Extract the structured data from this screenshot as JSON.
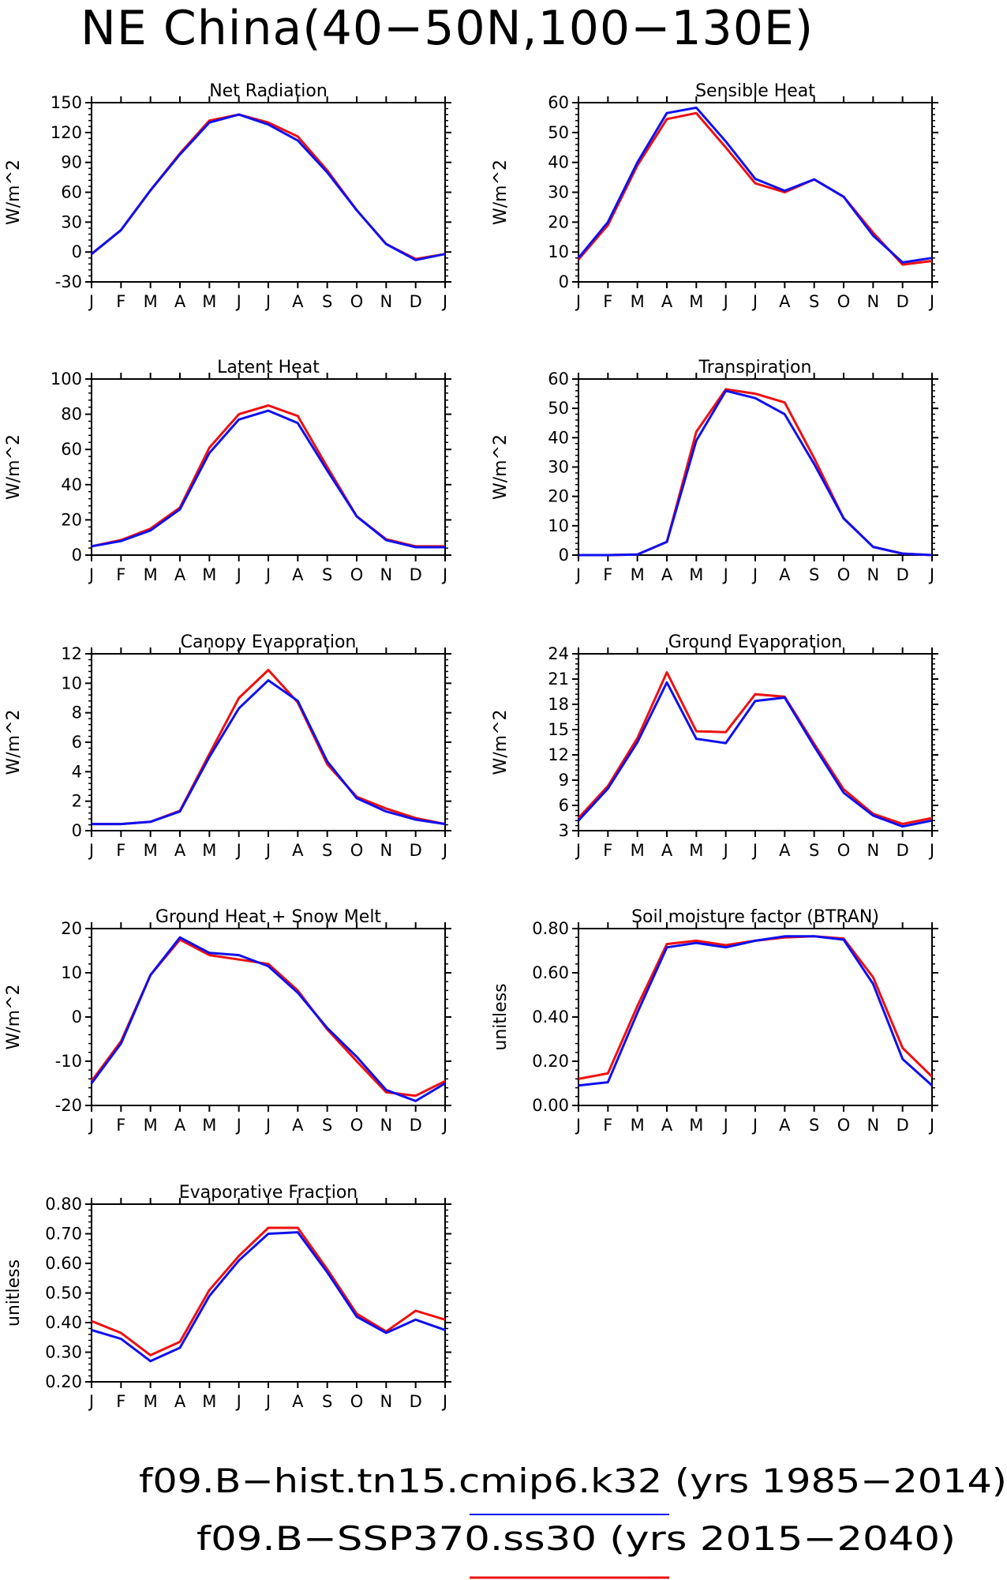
{
  "figure": {
    "title": "NE China(40−50N,100−130E)",
    "legend": [
      {
        "label": "f09.B−hist.tn15.cmip6.k32 (yrs 1985−2014)",
        "color": "#1010ee"
      },
      {
        "label": "f09.B−SSP370.ss30 (yrs 2015−2040)",
        "color": "#ee1010"
      }
    ],
    "series_colors": {
      "hist": "#1010ee",
      "ssp": "#ee1010"
    }
  },
  "chart_data": [
    {
      "type": "line",
      "title": "Net Radiation",
      "ylabel": "W/m^2",
      "x": [
        "J",
        "F",
        "M",
        "A",
        "M",
        "J",
        "J",
        "A",
        "S",
        "O",
        "N",
        "D",
        "J"
      ],
      "ylim": [
        -30,
        150
      ],
      "yticks": [
        "-30",
        "0",
        "30",
        "60",
        "90",
        "120",
        "150"
      ],
      "series": [
        {
          "key": "hist",
          "values": [
            -2,
            22,
            62,
            98,
            130,
            138,
            128,
            112,
            80,
            42,
            8,
            -8,
            -2
          ]
        },
        {
          "key": "ssp",
          "values": [
            -2,
            22,
            62,
            99,
            132,
            138,
            130,
            116,
            82,
            42,
            8,
            -7,
            -2
          ]
        }
      ]
    },
    {
      "type": "line",
      "title": "Sensible Heat",
      "ylabel": "W/m^2",
      "x": [
        "J",
        "F",
        "M",
        "A",
        "M",
        "J",
        "J",
        "A",
        "S",
        "O",
        "N",
        "D",
        "J"
      ],
      "ylim": [
        0,
        60
      ],
      "yticks": [
        "0",
        "10",
        "20",
        "30",
        "40",
        "50",
        "60"
      ],
      "series": [
        {
          "key": "hist",
          "values": [
            8,
            20,
            40,
            56.5,
            58.3,
            47,
            34.5,
            30.5,
            34.3,
            28.5,
            15.5,
            6.5,
            8
          ]
        },
        {
          "key": "ssp",
          "values": [
            7.5,
            19,
            39,
            54.5,
            56.5,
            45,
            33,
            30,
            34.3,
            28.5,
            16.5,
            5.8,
            7
          ]
        }
      ]
    },
    {
      "type": "line",
      "title": "Latent Heat",
      "ylabel": "W/m^2",
      "x": [
        "J",
        "F",
        "M",
        "A",
        "M",
        "J",
        "J",
        "A",
        "S",
        "O",
        "N",
        "D",
        "J"
      ],
      "ylim": [
        0,
        100
      ],
      "yticks": [
        "0",
        "20",
        "40",
        "60",
        "80",
        "100"
      ],
      "series": [
        {
          "key": "hist",
          "values": [
            5,
            8,
            14,
            26,
            58,
            77,
            82,
            75,
            48,
            22,
            8.5,
            4.5,
            4.5
          ]
        },
        {
          "key": "ssp",
          "values": [
            5,
            8.5,
            15,
            27,
            61,
            80,
            85,
            79,
            50,
            22,
            9,
            5,
            5
          ]
        }
      ]
    },
    {
      "type": "line",
      "title": "Transpiration",
      "ylabel": "W/m^2",
      "x": [
        "J",
        "F",
        "M",
        "A",
        "M",
        "J",
        "J",
        "A",
        "S",
        "O",
        "N",
        "D",
        "J"
      ],
      "ylim": [
        0,
        60
      ],
      "yticks": [
        "0",
        "10",
        "20",
        "30",
        "40",
        "50",
        "60"
      ],
      "series": [
        {
          "key": "hist",
          "values": [
            0,
            0,
            0.2,
            4.5,
            39,
            56,
            53.5,
            48,
            31,
            12.5,
            2.8,
            0.5,
            0
          ]
        },
        {
          "key": "ssp",
          "values": [
            0,
            0,
            0.2,
            4.5,
            42,
            56.5,
            55,
            52,
            33,
            12.5,
            2.8,
            0.5,
            0
          ]
        }
      ]
    },
    {
      "type": "line",
      "title": "Canopy Evaporation",
      "ylabel": "W/m^2",
      "x": [
        "J",
        "F",
        "M",
        "A",
        "M",
        "J",
        "J",
        "A",
        "S",
        "O",
        "N",
        "D",
        "J"
      ],
      "ylim": [
        0,
        12
      ],
      "yticks": [
        "0",
        "2",
        "4",
        "6",
        "8",
        "10",
        "12"
      ],
      "series": [
        {
          "key": "hist",
          "values": [
            0.45,
            0.45,
            0.6,
            1.3,
            5,
            8.3,
            10.2,
            8.8,
            4.7,
            2.2,
            1.3,
            0.75,
            0.45
          ]
        },
        {
          "key": "ssp",
          "values": [
            0.45,
            0.45,
            0.6,
            1.35,
            5.2,
            9,
            10.9,
            8.7,
            4.5,
            2.3,
            1.5,
            0.85,
            0.45
          ]
        }
      ]
    },
    {
      "type": "line",
      "title": "Ground Evaporation",
      "ylabel": "W/m^2",
      "x": [
        "J",
        "F",
        "M",
        "A",
        "M",
        "J",
        "J",
        "A",
        "S",
        "O",
        "N",
        "D",
        "J"
      ],
      "ylim": [
        3,
        24
      ],
      "yticks": [
        "3",
        "6",
        "9",
        "12",
        "15",
        "18",
        "21",
        "24"
      ],
      "series": [
        {
          "key": "hist",
          "values": [
            4.2,
            8,
            13.5,
            20.6,
            13.9,
            13.4,
            18.4,
            18.8,
            13,
            7.5,
            4.8,
            3.5,
            4.2
          ]
        },
        {
          "key": "ssp",
          "values": [
            4.5,
            8.3,
            14,
            21.8,
            14.8,
            14.7,
            19.2,
            18.9,
            13.3,
            7.9,
            5,
            3.8,
            4.5
          ]
        }
      ]
    },
    {
      "type": "line",
      "title": "Ground Heat + Snow Melt",
      "ylabel": "W/m^2",
      "x": [
        "J",
        "F",
        "M",
        "A",
        "M",
        "J",
        "J",
        "A",
        "S",
        "O",
        "N",
        "D",
        "J"
      ],
      "ylim": [
        -20,
        20
      ],
      "yticks": [
        "-20",
        "-10",
        "0",
        "10",
        "20"
      ],
      "series": [
        {
          "key": "hist",
          "values": [
            -15,
            -6,
            9.5,
            18,
            14.5,
            14,
            11.5,
            5.5,
            -2.5,
            -9,
            -16.5,
            -19,
            -15
          ]
        },
        {
          "key": "ssp",
          "values": [
            -14.5,
            -5.5,
            9.5,
            17.5,
            14,
            13,
            12,
            6,
            -2.8,
            -10,
            -17,
            -17.8,
            -14.5
          ]
        }
      ]
    },
    {
      "type": "line",
      "title": "Soil moisture factor (BTRAN)",
      "ylabel": "unitless",
      "x": [
        "J",
        "F",
        "M",
        "A",
        "M",
        "J",
        "J",
        "A",
        "S",
        "O",
        "N",
        "D",
        "J"
      ],
      "ylim": [
        0,
        0.8
      ],
      "yticks": [
        "0.00",
        "0.20",
        "0.40",
        "0.60",
        "0.80"
      ],
      "series": [
        {
          "key": "hist",
          "values": [
            0.09,
            0.105,
            0.42,
            0.715,
            0.735,
            0.715,
            0.745,
            0.765,
            0.765,
            0.75,
            0.55,
            0.21,
            0.09
          ]
        },
        {
          "key": "ssp",
          "values": [
            0.12,
            0.145,
            0.45,
            0.73,
            0.745,
            0.725,
            0.745,
            0.76,
            0.765,
            0.755,
            0.58,
            0.26,
            0.13
          ]
        }
      ]
    },
    {
      "type": "line",
      "title": "Evaporative Fraction",
      "ylabel": "unitless",
      "x": [
        "J",
        "F",
        "M",
        "A",
        "M",
        "J",
        "J",
        "A",
        "S",
        "O",
        "N",
        "D",
        "J"
      ],
      "ylim": [
        0.2,
        0.8
      ],
      "yticks": [
        "0.20",
        "0.30",
        "0.40",
        "0.50",
        "0.60",
        "0.70",
        "0.80"
      ],
      "series": [
        {
          "key": "hist",
          "values": [
            0.375,
            0.345,
            0.27,
            0.315,
            0.49,
            0.61,
            0.7,
            0.705,
            0.57,
            0.42,
            0.365,
            0.41,
            0.375
          ]
        },
        {
          "key": "ssp",
          "values": [
            0.405,
            0.365,
            0.29,
            0.335,
            0.51,
            0.625,
            0.72,
            0.72,
            0.58,
            0.43,
            0.37,
            0.44,
            0.41
          ]
        }
      ]
    }
  ]
}
